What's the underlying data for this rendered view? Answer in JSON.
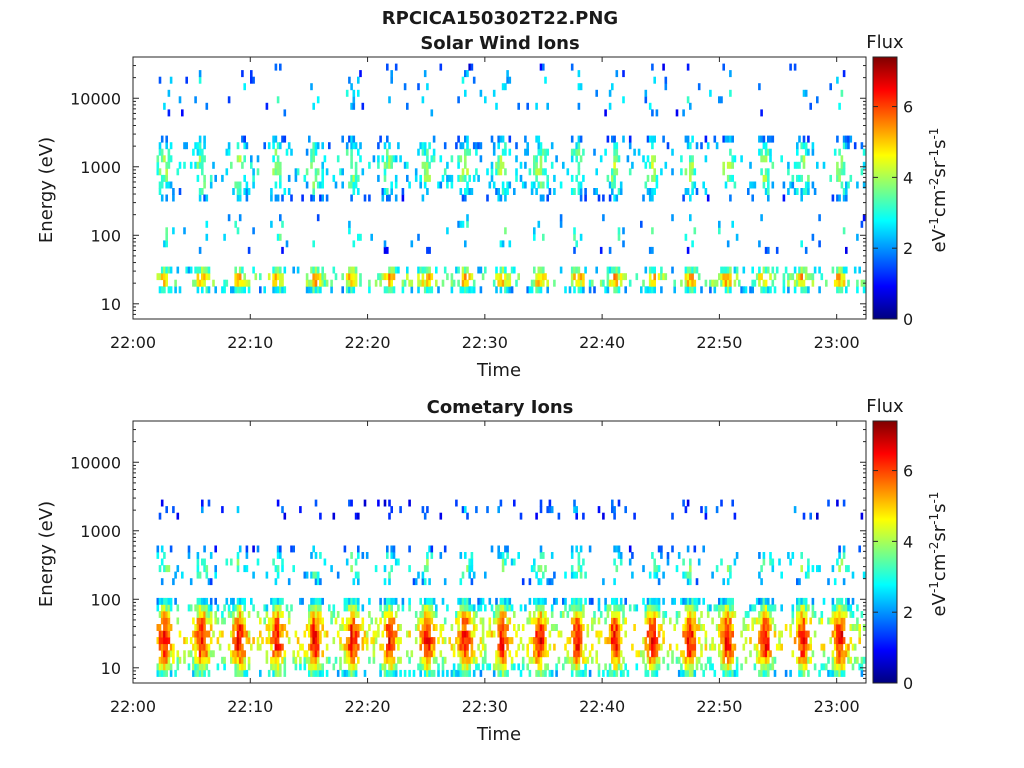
{
  "figure_title": "RPCICA150302T22.PNG",
  "colors": {
    "colormap": [
      "#00007f",
      "#0000ff",
      "#007fff",
      "#00ffff",
      "#7fff7f",
      "#ffff00",
      "#ff7f00",
      "#ff0000",
      "#7f0000"
    ]
  },
  "chart_data": [
    {
      "type": "heatmap",
      "title": "Solar Wind Ions",
      "xlabel": "Time",
      "ylabel": "Energy (eV)",
      "x_ticks": [
        "22:00",
        "22:10",
        "22:20",
        "22:30",
        "22:40",
        "22:50",
        "23:00"
      ],
      "x_range_minutes": [
        0,
        62.5
      ],
      "y_scale": "log",
      "y_ticks": [
        "10",
        "100",
        "1000",
        "10000"
      ],
      "y_range": [
        6,
        40000
      ],
      "colorbar": {
        "title": "Flux",
        "label": "eV-1cm-2sr-1s-1",
        "range": [
          0,
          7.4
        ],
        "ticks": [
          "0",
          "2",
          "4",
          "6"
        ]
      },
      "structure": {
        "pulse_period_minutes": 3.2,
        "bands": [
          {
            "energy_range_eV": [
              15,
              35
            ],
            "typical_flux": 4.8
          },
          {
            "energy_range_eV": [
              60,
              200
            ],
            "typical_flux": 3.1
          },
          {
            "energy_range_eV": [
              300,
              3000
            ],
            "typical_flux": 3.5
          },
          {
            "energy_range_eV": [
              5000,
              30000
            ],
            "typical_flux": 2.6
          }
        ]
      }
    },
    {
      "type": "heatmap",
      "title": "Cometary Ions",
      "xlabel": "Time",
      "ylabel": "Energy (eV)",
      "x_ticks": [
        "22:00",
        "22:10",
        "22:20",
        "22:30",
        "22:40",
        "22:50",
        "23:00"
      ],
      "x_range_minutes": [
        0,
        62.5
      ],
      "y_scale": "log",
      "y_ticks": [
        "10",
        "100",
        "1000",
        "10000"
      ],
      "y_range": [
        6,
        40000
      ],
      "colorbar": {
        "title": "Flux",
        "label": "eV-1cm-2sr-1s-1",
        "range": [
          0,
          7.4
        ],
        "ticks": [
          "0",
          "2",
          "4",
          "6"
        ]
      },
      "structure": {
        "pulse_period_minutes": 3.2,
        "bands": [
          {
            "energy_range_eV": [
              7,
              100
            ],
            "typical_flux": 5.8
          },
          {
            "energy_range_eV": [
              150,
              600
            ],
            "typical_flux": 3.3
          },
          {
            "energy_range_eV": [
              1500,
              2800
            ],
            "typical_flux": 1.8
          }
        ]
      }
    }
  ]
}
